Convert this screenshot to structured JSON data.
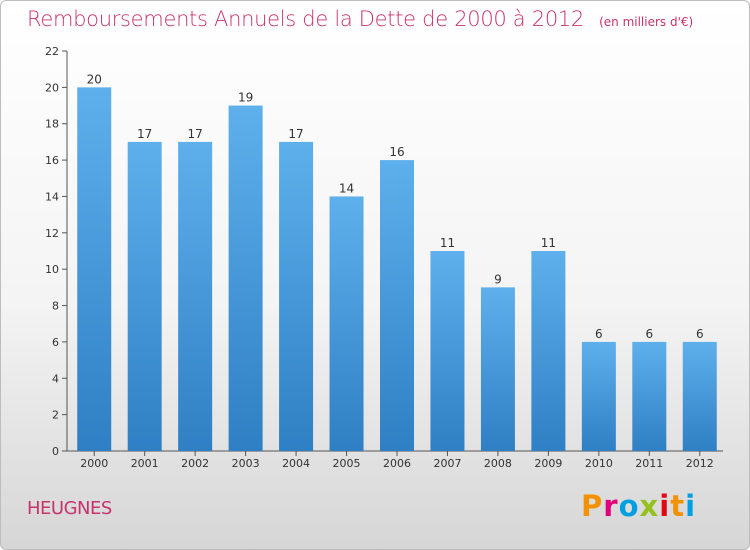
{
  "header": {
    "title": "Remboursements Annuels de la Dette de 2000 à 2012",
    "unit": "(en milliers d'€)"
  },
  "footer": {
    "commune": "HEUGNES",
    "logo_text": "Proxiti",
    "logo_colors": [
      "#f39200",
      "#e2007a",
      "#009fe3",
      "#95c11f",
      "#e30613",
      "#f39200",
      "#009fe3"
    ]
  },
  "chart_data": {
    "type": "bar",
    "categories": [
      "2000",
      "2001",
      "2002",
      "2003",
      "2004",
      "2005",
      "2006",
      "2007",
      "2008",
      "2009",
      "2010",
      "2011",
      "2012"
    ],
    "values": [
      20,
      17,
      17,
      19,
      17,
      14,
      16,
      11,
      9,
      11,
      6,
      6,
      6
    ],
    "ylim": [
      0,
      22
    ],
    "yticks": [
      0,
      2,
      4,
      6,
      8,
      10,
      12,
      14,
      16,
      18,
      20,
      22
    ],
    "grid": false,
    "bar_color": "#4aa1e0"
  }
}
